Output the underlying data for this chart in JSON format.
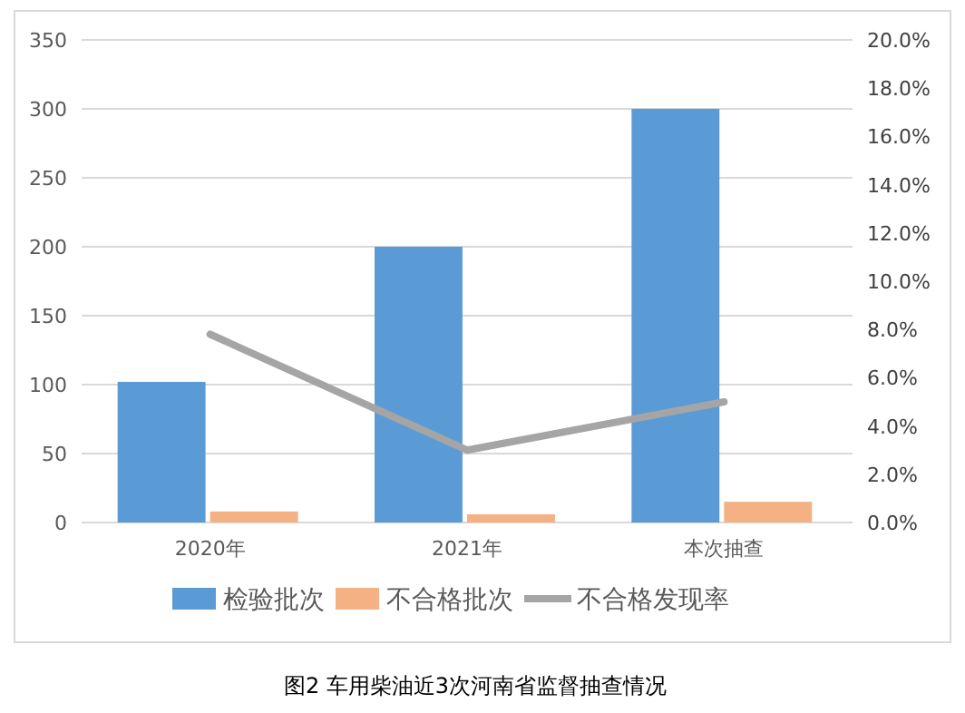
{
  "chart_data": {
    "type": "bar",
    "title": "图2 车用柴油近3次河南省监督抽查情况",
    "categories": [
      "2020年",
      "2021年",
      "本次抽查"
    ],
    "series": [
      {
        "name": "检验批次",
        "color": "#5b9bd5",
        "values": [
          102,
          200,
          300
        ]
      },
      {
        "name": "不合格批次",
        "color": "#f4b183",
        "values": [
          8,
          6,
          15
        ]
      },
      {
        "name": "不合格发现率",
        "color": "#a5a5a5",
        "type": "line",
        "axis": "y2",
        "values": [
          7.8,
          3.0,
          5.0
        ]
      }
    ],
    "ylim": [
      0,
      350
    ],
    "yticks": [
      0,
      50,
      100,
      150,
      200,
      250,
      300,
      350
    ],
    "y2lim": [
      0,
      20
    ],
    "y2ticks": [
      {
        "value": 0,
        "label": "0.0%"
      },
      {
        "value": 2,
        "label": "2.0%"
      },
      {
        "value": 4,
        "label": "4.0%"
      },
      {
        "value": 6,
        "label": "6.0%"
      },
      {
        "value": 8,
        "label": "8.0%"
      },
      {
        "value": 10,
        "label": "10.0%"
      },
      {
        "value": 12,
        "label": "12.0%"
      },
      {
        "value": 14,
        "label": "14.0%"
      },
      {
        "value": 16,
        "label": "16.0%"
      },
      {
        "value": 18,
        "label": "18.0%"
      },
      {
        "value": 20,
        "label": "20.0%"
      }
    ],
    "grid": "y",
    "legend": "bottom",
    "marker": "none"
  }
}
